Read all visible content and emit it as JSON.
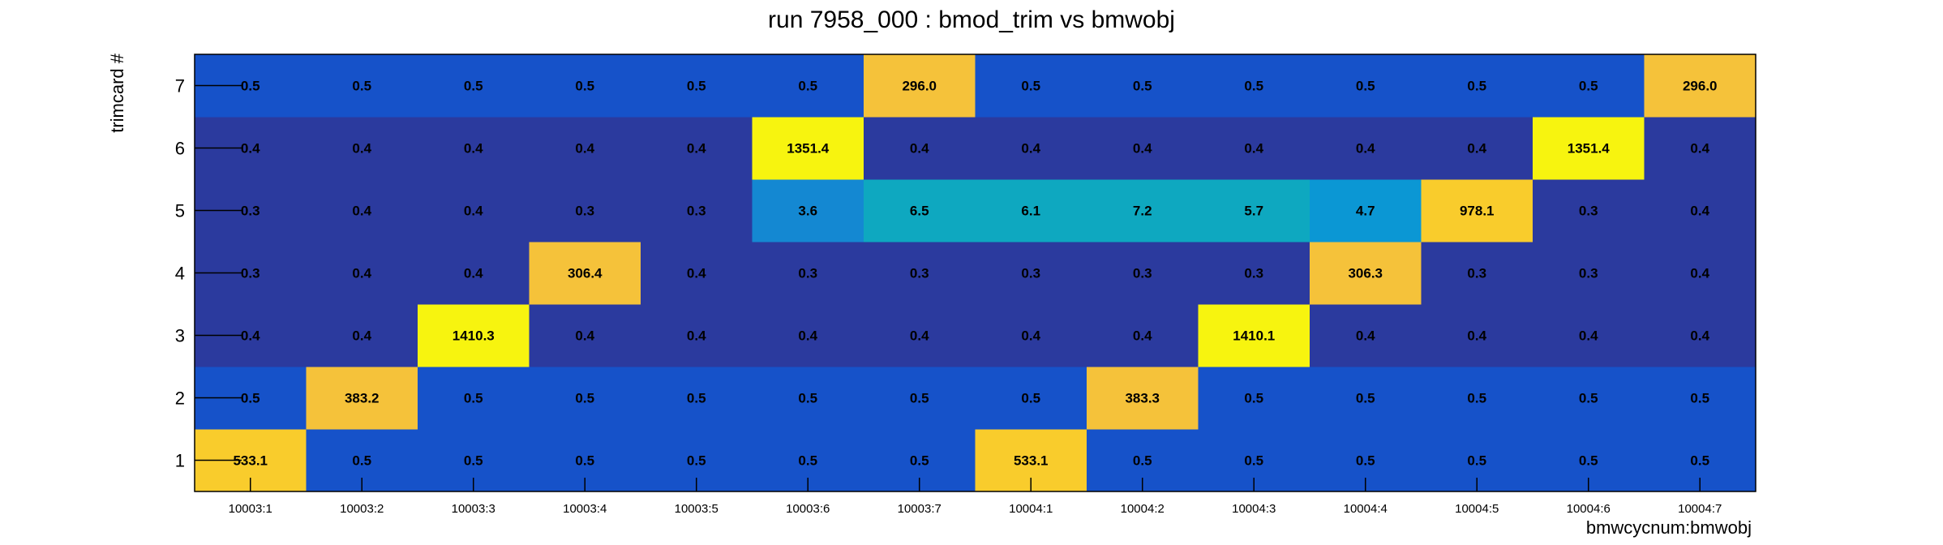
{
  "chart_data": {
    "type": "heatmap",
    "title": "run 7958_000 : bmod_trim vs bmwobj",
    "xlabel": "bmwcycnum:bmwobj",
    "ylabel": "trimcard #",
    "x_categories": [
      "10003:1",
      "10003:2",
      "10003:3",
      "10003:4",
      "10003:5",
      "10003:6",
      "10003:7",
      "10004:1",
      "10004:2",
      "10004:3",
      "10004:4",
      "10004:5",
      "10004:6",
      "10004:7"
    ],
    "y_categories": [
      "1",
      "2",
      "3",
      "4",
      "5",
      "6",
      "7"
    ],
    "values": [
      [
        "533.1",
        "0.5",
        "0.5",
        "0.5",
        "0.5",
        "0.5",
        "0.5",
        "533.1",
        "0.5",
        "0.5",
        "0.5",
        "0.5",
        "0.5",
        "0.5"
      ],
      [
        "0.5",
        "383.2",
        "0.5",
        "0.5",
        "0.5",
        "0.5",
        "0.5",
        "0.5",
        "383.3",
        "0.5",
        "0.5",
        "0.5",
        "0.5",
        "0.5"
      ],
      [
        "0.4",
        "0.4",
        "1410.3",
        "0.4",
        "0.4",
        "0.4",
        "0.4",
        "0.4",
        "0.4",
        "1410.1",
        "0.4",
        "0.4",
        "0.4",
        "0.4"
      ],
      [
        "0.3",
        "0.4",
        "0.4",
        "306.4",
        "0.4",
        "0.3",
        "0.3",
        "0.3",
        "0.3",
        "0.3",
        "306.3",
        "0.3",
        "0.3",
        "0.4"
      ],
      [
        "0.3",
        "0.4",
        "0.4",
        "0.3",
        "0.3",
        "3.6",
        "6.5",
        "6.1",
        "7.2",
        "5.7",
        "4.7",
        "978.1",
        "0.3",
        "0.4"
      ],
      [
        "0.4",
        "0.4",
        "0.4",
        "0.4",
        "0.4",
        "1351.4",
        "0.4",
        "0.4",
        "0.4",
        "0.4",
        "0.4",
        "0.4",
        "1351.4",
        "0.4"
      ],
      [
        "0.5",
        "0.5",
        "0.5",
        "0.5",
        "0.5",
        "0.5",
        "296.0",
        "0.5",
        "0.5",
        "0.5",
        "0.5",
        "0.5",
        "0.5",
        "296.0"
      ]
    ],
    "colors": {
      "0.3": "#2b3a9e",
      "0.4": "#2b3a9e",
      "0.5": "#1652c9",
      "0.5-row1-col2": "#2b3a9e",
      "3.6": "#1488d2",
      "6.5": "#0ea8c0",
      "6.1": "#0ea8c0",
      "7.2": "#0ea8c0",
      "5.7": "#0c9ad0",
      "4.7": "#0b97d4",
      "high": "#f7f40f",
      "mid": "#f5c23a",
      "low533": "#f9cc2c"
    },
    "grid": false,
    "legend": "none"
  }
}
